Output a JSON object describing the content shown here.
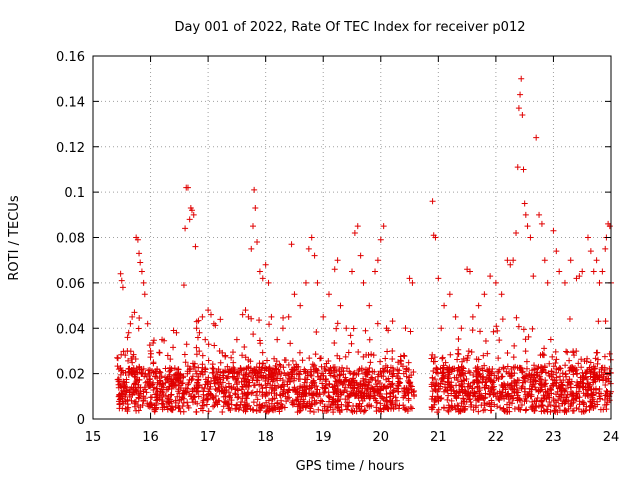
{
  "chart_data": {
    "type": "scatter",
    "title": "Day 001 of 2022, Rate Of TEC Index for receiver p012",
    "xlabel": "GPS time / hours",
    "ylabel": "ROTI / TECUs",
    "xlim": [
      15,
      24
    ],
    "ylim": [
      0,
      0.16
    ],
    "x_ticks": [
      15,
      16,
      17,
      18,
      19,
      20,
      21,
      22,
      23,
      24
    ],
    "x_tick_labels": [
      "15",
      "16",
      "17",
      "18",
      "19",
      "20",
      "21",
      "22",
      "23",
      "24"
    ],
    "y_ticks": [
      0,
      0.02,
      0.04,
      0.06,
      0.08,
      0.1,
      0.12,
      0.14,
      0.16
    ],
    "y_tick_labels": [
      "0",
      "0.02",
      "0.04",
      "0.06",
      "0.08",
      "0.1",
      "0.12",
      "0.14",
      "0.16"
    ],
    "grid": true,
    "marker": "+",
    "color": "#e00000",
    "series": [
      {
        "points": [
          [
            15.42,
            0.027
          ],
          [
            15.45,
            0.022
          ],
          [
            15.48,
            0.064
          ],
          [
            15.5,
            0.061
          ],
          [
            15.52,
            0.058
          ],
          [
            15.55,
            0.015
          ],
          [
            15.58,
            0.012
          ],
          [
            15.6,
            0.036
          ],
          [
            15.62,
            0.038
          ],
          [
            15.65,
            0.042
          ],
          [
            15.68,
            0.045
          ],
          [
            15.72,
            0.047
          ],
          [
            15.75,
            0.08
          ],
          [
            15.78,
            0.079
          ],
          [
            15.8,
            0.073
          ],
          [
            15.82,
            0.069
          ],
          [
            15.85,
            0.065
          ],
          [
            15.88,
            0.06
          ],
          [
            15.9,
            0.055
          ],
          [
            15.95,
            0.042
          ],
          [
            16.0,
            0.03
          ],
          [
            16.05,
            0.025
          ],
          [
            16.1,
            0.02
          ],
          [
            16.2,
            0.035
          ],
          [
            16.3,
            0.028
          ],
          [
            16.4,
            0.039
          ],
          [
            16.45,
            0.038
          ],
          [
            16.5,
            0.018
          ],
          [
            16.58,
            0.059
          ],
          [
            16.6,
            0.084
          ],
          [
            16.62,
            0.102
          ],
          [
            16.65,
            0.102
          ],
          [
            16.68,
            0.088
          ],
          [
            16.7,
            0.093
          ],
          [
            16.72,
            0.092
          ],
          [
            16.75,
            0.09
          ],
          [
            16.78,
            0.076
          ],
          [
            16.8,
            0.04
          ],
          [
            16.85,
            0.038
          ],
          [
            16.9,
            0.045
          ],
          [
            16.95,
            0.035
          ],
          [
            17.0,
            0.048
          ],
          [
            17.05,
            0.046
          ],
          [
            17.1,
            0.042
          ],
          [
            17.2,
            0.03
          ],
          [
            17.3,
            0.028
          ],
          [
            17.4,
            0.027
          ],
          [
            17.5,
            0.035
          ],
          [
            17.6,
            0.046
          ],
          [
            17.65,
            0.048
          ],
          [
            17.7,
            0.045
          ],
          [
            17.75,
            0.075
          ],
          [
            17.78,
            0.085
          ],
          [
            17.8,
            0.101
          ],
          [
            17.82,
            0.093
          ],
          [
            17.85,
            0.078
          ],
          [
            17.9,
            0.065
          ],
          [
            17.95,
            0.062
          ],
          [
            18.0,
            0.068
          ],
          [
            18.05,
            0.06
          ],
          [
            18.1,
            0.045
          ],
          [
            18.2,
            0.035
          ],
          [
            18.3,
            0.04
          ],
          [
            18.4,
            0.045
          ],
          [
            18.45,
            0.077
          ],
          [
            18.5,
            0.055
          ],
          [
            18.6,
            0.05
          ],
          [
            18.7,
            0.06
          ],
          [
            18.75,
            0.075
          ],
          [
            18.8,
            0.08
          ],
          [
            18.85,
            0.072
          ],
          [
            18.9,
            0.06
          ],
          [
            19.0,
            0.045
          ],
          [
            19.1,
            0.055
          ],
          [
            19.2,
            0.066
          ],
          [
            19.25,
            0.07
          ],
          [
            19.3,
            0.05
          ],
          [
            19.4,
            0.04
          ],
          [
            19.5,
            0.065
          ],
          [
            19.55,
            0.082
          ],
          [
            19.6,
            0.085
          ],
          [
            19.65,
            0.072
          ],
          [
            19.7,
            0.06
          ],
          [
            19.8,
            0.05
          ],
          [
            19.9,
            0.065
          ],
          [
            19.95,
            0.07
          ],
          [
            20.0,
            0.079
          ],
          [
            20.05,
            0.085
          ],
          [
            20.1,
            0.04
          ],
          [
            20.2,
            0.03
          ],
          [
            20.3,
            0.025
          ],
          [
            20.4,
            0.028
          ],
          [
            20.5,
            0.062
          ],
          [
            20.55,
            0.06
          ],
          [
            20.9,
            0.096
          ],
          [
            20.92,
            0.081
          ],
          [
            20.95,
            0.08
          ],
          [
            21.0,
            0.062
          ],
          [
            21.05,
            0.04
          ],
          [
            21.1,
            0.05
          ],
          [
            21.2,
            0.055
          ],
          [
            21.3,
            0.045
          ],
          [
            21.4,
            0.04
          ],
          [
            21.5,
            0.066
          ],
          [
            21.55,
            0.065
          ],
          [
            21.6,
            0.045
          ],
          [
            21.7,
            0.05
          ],
          [
            21.8,
            0.055
          ],
          [
            21.9,
            0.063
          ],
          [
            22.0,
            0.06
          ],
          [
            22.1,
            0.055
          ],
          [
            22.2,
            0.07
          ],
          [
            22.25,
            0.068
          ],
          [
            22.3,
            0.07
          ],
          [
            22.35,
            0.082
          ],
          [
            22.38,
            0.111
          ],
          [
            22.4,
            0.137
          ],
          [
            22.42,
            0.143
          ],
          [
            22.44,
            0.15
          ],
          [
            22.46,
            0.134
          ],
          [
            22.48,
            0.11
          ],
          [
            22.5,
            0.095
          ],
          [
            22.52,
            0.09
          ],
          [
            22.55,
            0.085
          ],
          [
            22.6,
            0.08
          ],
          [
            22.65,
            0.063
          ],
          [
            22.7,
            0.124
          ],
          [
            22.75,
            0.09
          ],
          [
            22.8,
            0.086
          ],
          [
            22.85,
            0.07
          ],
          [
            22.9,
            0.06
          ],
          [
            23.0,
            0.083
          ],
          [
            23.05,
            0.074
          ],
          [
            23.1,
            0.065
          ],
          [
            23.2,
            0.06
          ],
          [
            23.3,
            0.07
          ],
          [
            23.4,
            0.062
          ],
          [
            23.45,
            0.063
          ],
          [
            23.5,
            0.065
          ],
          [
            23.6,
            0.08
          ],
          [
            23.65,
            0.074
          ],
          [
            23.7,
            0.065
          ],
          [
            23.75,
            0.07
          ],
          [
            23.8,
            0.06
          ],
          [
            23.85,
            0.065
          ],
          [
            23.9,
            0.075
          ],
          [
            23.92,
            0.08
          ],
          [
            23.95,
            0.086
          ],
          [
            23.98,
            0.085
          ],
          [
            24.0,
            0.06
          ],
          [
            15.5,
            0.01
          ],
          [
            15.6,
            0.008
          ],
          [
            15.7,
            0.012
          ],
          [
            15.8,
            0.009
          ],
          [
            15.9,
            0.014
          ],
          [
            16.0,
            0.007
          ],
          [
            16.1,
            0.011
          ],
          [
            16.2,
            0.013
          ],
          [
            16.3,
            0.009
          ],
          [
            16.4,
            0.016
          ],
          [
            16.5,
            0.008
          ],
          [
            16.6,
            0.012
          ],
          [
            16.7,
            0.01
          ],
          [
            16.8,
            0.015
          ],
          [
            16.9,
            0.006
          ],
          [
            17.0,
            0.009
          ],
          [
            17.1,
            0.018
          ],
          [
            17.2,
            0.012
          ],
          [
            17.3,
            0.01
          ],
          [
            17.4,
            0.014
          ],
          [
            17.5,
            0.02
          ],
          [
            17.6,
            0.011
          ],
          [
            17.7,
            0.016
          ],
          [
            17.8,
            0.022
          ],
          [
            17.9,
            0.019
          ],
          [
            18.0,
            0.015
          ],
          [
            18.1,
            0.02
          ],
          [
            18.2,
            0.017
          ],
          [
            18.3,
            0.012
          ],
          [
            18.4,
            0.018
          ],
          [
            18.5,
            0.014
          ],
          [
            18.6,
            0.021
          ],
          [
            18.7,
            0.011
          ],
          [
            18.8,
            0.016
          ],
          [
            18.9,
            0.013
          ],
          [
            19.0,
            0.019
          ],
          [
            19.1,
            0.01
          ],
          [
            19.2,
            0.015
          ],
          [
            19.3,
            0.012
          ],
          [
            19.4,
            0.017
          ],
          [
            19.5,
            0.011
          ],
          [
            19.6,
            0.014
          ],
          [
            19.7,
            0.01
          ],
          [
            19.8,
            0.016
          ],
          [
            19.9,
            0.012
          ],
          [
            20.0,
            0.013
          ],
          [
            20.1,
            0.011
          ],
          [
            20.2,
            0.015
          ],
          [
            20.3,
            0.018
          ],
          [
            20.4,
            0.02
          ],
          [
            20.5,
            0.016
          ],
          [
            20.9,
            0.01
          ],
          [
            21.0,
            0.008
          ],
          [
            21.1,
            0.012
          ],
          [
            21.2,
            0.015
          ],
          [
            21.3,
            0.01
          ],
          [
            21.4,
            0.013
          ],
          [
            21.5,
            0.011
          ],
          [
            21.6,
            0.016
          ],
          [
            21.7,
            0.009
          ],
          [
            21.8,
            0.014
          ],
          [
            21.9,
            0.012
          ],
          [
            22.0,
            0.01
          ],
          [
            22.1,
            0.015
          ],
          [
            22.2,
            0.011
          ],
          [
            22.3,
            0.013
          ],
          [
            22.4,
            0.017
          ],
          [
            22.5,
            0.012
          ],
          [
            22.6,
            0.01
          ],
          [
            22.7,
            0.008
          ],
          [
            22.8,
            0.013
          ],
          [
            22.9,
            0.011
          ],
          [
            23.0,
            0.015
          ],
          [
            23.1,
            0.01
          ],
          [
            23.2,
            0.012
          ],
          [
            23.3,
            0.014
          ],
          [
            23.4,
            0.009
          ],
          [
            23.5,
            0.016
          ],
          [
            23.6,
            0.011
          ],
          [
            23.7,
            0.013
          ],
          [
            23.8,
            0.01
          ],
          [
            23.9,
            0.015
          ],
          [
            24.0,
            0.012
          ]
        ],
        "generated_dense_band": {
          "x_range": [
            15.42,
            24.0
          ],
          "gap": [
            20.58,
            20.88
          ],
          "y_min": 0.003,
          "y_typical_max": 0.03,
          "count": 2400
        }
      }
    ]
  }
}
